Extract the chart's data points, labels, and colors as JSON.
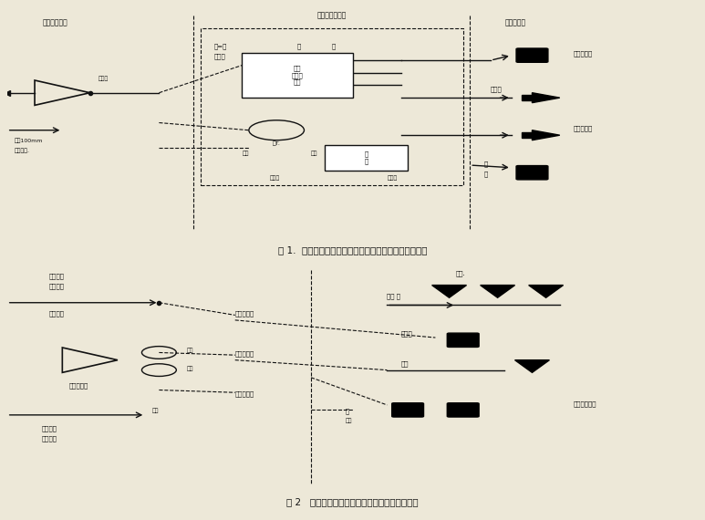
{
  "fig_width": 7.73,
  "fig_height": 5.7,
  "bg_color": "#ede8d8",
  "caption1": "图 1.  居排说电线利用居内电话线路到居内市话机连接图",
  "caption2": "图 2   居排说电线利用障居及、郊电话线路连接图",
  "text_color": "#111111",
  "line_color": "#111111",
  "label_top_left": "（居一居对）",
  "label_top_mid": "（广播发射机）",
  "label_top_right1": "用户电话机",
  "label_top_right2": "（多局广）",
  "label_top_right3": "扩火机",
  "label_top_right4": "广播发射机",
  "label_bot_tl1": "宿制式卷",
  "label_bot_tl2": "地交换机",
  "label_bot_l2": "用户测定",
  "label_bot_l3": "用户定位器",
  "label_bot_bl1": "广播电电",
  "label_bot_bl2": "站交换机",
  "label_bot_right1": "站点.",
  "label_bot_right2": "向位 法",
  "label_bot_right3": "通单品",
  "label_bot_right4": "有拨",
  "label_bot_right5": "（本地区广）"
}
